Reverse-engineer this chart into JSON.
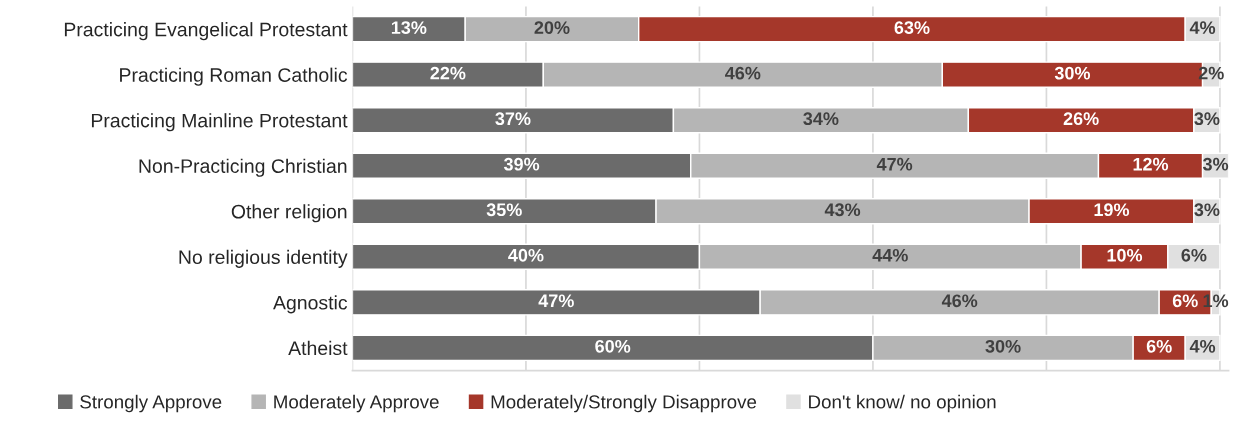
{
  "chart_data": {
    "type": "bar",
    "orientation": "horizontal",
    "stacked": true,
    "categories": [
      "Practicing Evangelical Protestant",
      "Practicing Roman Catholic",
      "Practicing Mainline Protestant",
      "Non-Practicing Christian",
      "Other religion",
      "No religious identity",
      "Agnostic",
      "Atheist"
    ],
    "series": [
      {
        "name": "Strongly Approve",
        "color": "#6b6b6b",
        "values": [
          13,
          22,
          37,
          39,
          35,
          40,
          47,
          60
        ],
        "value_labels": [
          "13%",
          "22%",
          "37%",
          "39%",
          "35%",
          "40%",
          "47%",
          "60%"
        ]
      },
      {
        "name": "Moderately Approve",
        "color": "#b5b5b5",
        "values": [
          20,
          46,
          34,
          47,
          43,
          44,
          46,
          30
        ],
        "value_labels": [
          "20%",
          "46%",
          "34%",
          "47%",
          "43%",
          "44%",
          "46%",
          "30%"
        ]
      },
      {
        "name": "Moderately/Strongly Disapprove",
        "color": "#a5372a",
        "values": [
          63,
          30,
          26,
          12,
          19,
          10,
          6,
          6
        ],
        "value_labels": [
          "63%",
          "30%",
          "26%",
          "12%",
          "19%",
          "10%",
          "6%",
          "6%"
        ]
      },
      {
        "name": "Don't know/ no opinion",
        "color": "#e0e0e0",
        "values": [
          4,
          2,
          3,
          3,
          3,
          6,
          1,
          4
        ],
        "value_labels": [
          "4%",
          "2%",
          "3%",
          "3%",
          "3%",
          "6%",
          "1%",
          "4%"
        ]
      }
    ],
    "tick_labels": "y",
    "grid": "x",
    "legend": "bottom"
  }
}
